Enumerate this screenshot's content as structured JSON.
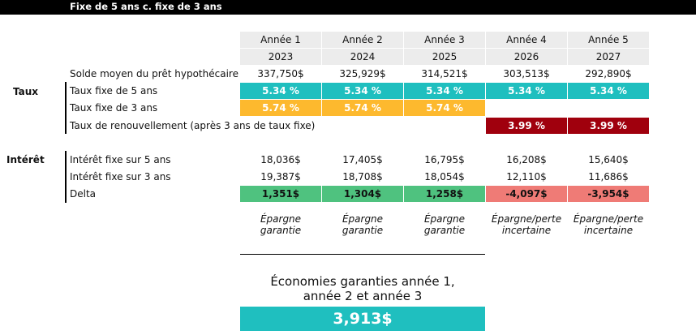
{
  "title": "Fixe de 5 ans c. fixe de 3 ans",
  "sections": {
    "taux": "Taux",
    "interet": "Intérêt"
  },
  "columns": [
    {
      "label": "Année 1",
      "year": "2023"
    },
    {
      "label": "Année 2",
      "year": "2024"
    },
    {
      "label": "Année 3",
      "year": "2025"
    },
    {
      "label": "Année 4",
      "year": "2026"
    },
    {
      "label": "Année 5",
      "year": "2027"
    }
  ],
  "rows": {
    "solde": {
      "label": "Solde moyen du prêt hypothécaire",
      "values": [
        "337,750$",
        "325,929$",
        "314,521$",
        "303,513$",
        "292,890$"
      ]
    },
    "fixe5": {
      "label": "Taux fixe de 5 ans",
      "values": [
        "5.34 %",
        "5.34 %",
        "5.34 %",
        "5.34 %",
        "5.34 %"
      ]
    },
    "fixe3": {
      "label": "Taux fixe de 3 ans",
      "values": [
        "5.74 %",
        "5.74 %",
        "5.74 %",
        "",
        ""
      ]
    },
    "renouvellement": {
      "label": "Taux de renouvellement (après 3 ans de taux fixe)",
      "values": [
        "",
        "",
        "",
        "3.99 %",
        "3.99 %"
      ]
    },
    "interet5": {
      "label": "Intérêt fixe sur 5 ans",
      "values": [
        "18,036$",
        "17,405$",
        "16,795$",
        "16,208$",
        "15,640$"
      ]
    },
    "interet3": {
      "label": "Intérêt fixe sur 3 ans",
      "values": [
        "19,387$",
        "18,708$",
        "18,054$",
        "12,110$",
        "11,686$"
      ]
    },
    "delta": {
      "label": "Delta",
      "values": [
        "1,351$",
        "1,304$",
        "1,258$",
        "-4,097$",
        "-3,954$"
      ]
    }
  },
  "notes": [
    [
      "Épargne",
      "garantie"
    ],
    [
      "Épargne",
      "garantie"
    ],
    [
      "Épargne",
      "garantie"
    ],
    [
      "Épargne/perte",
      "incertaine"
    ],
    [
      "Épargne/perte",
      "incertaine"
    ]
  ],
  "summary": {
    "line1": "Économies garanties année 1,",
    "line2": "année 2 et année 3",
    "value": "3,913$"
  },
  "colors": {
    "teal": "#1fbfbf",
    "yellow": "#fdb92e",
    "red": "#a0000d",
    "green": "#4fc27f",
    "pink": "#ef7b76"
  }
}
